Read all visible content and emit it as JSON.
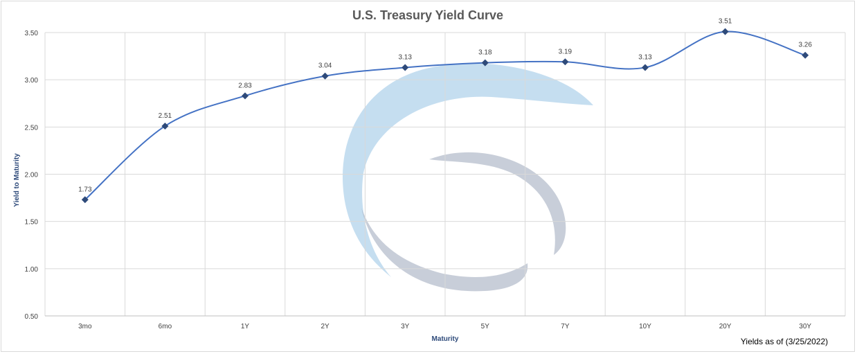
{
  "chart_data": {
    "type": "line",
    "title": "U.S. Treasury Yield Curve",
    "xlabel": "Maturity",
    "ylabel": "Yield to Maturity",
    "categories": [
      "3mo",
      "6mo",
      "1Y",
      "2Y",
      "3Y",
      "5Y",
      "7Y",
      "10Y",
      "20Y",
      "30Y"
    ],
    "series": [
      {
        "values": [
          1.73,
          2.51,
          2.83,
          3.04,
          3.13,
          3.18,
          3.19,
          3.13,
          3.51,
          3.26
        ]
      }
    ],
    "data_labels": [
      "1.73",
      "2.51",
      "2.83",
      "3.04",
      "3.13",
      "3.18",
      "3.19",
      "3.13",
      "3.51",
      "3.26"
    ],
    "ylim": [
      0.5,
      3.5
    ],
    "yticks": [
      "0.50",
      "1.00",
      "1.50",
      "2.00",
      "2.50",
      "3.00",
      "3.50"
    ],
    "ytick_values": [
      0.5,
      1.0,
      1.5,
      2.0,
      2.5,
      3.0,
      3.5
    ],
    "grid": true,
    "smooth": true,
    "marker": "diamond",
    "line_color": "#4472c4",
    "marker_color": "#2e4a7a",
    "footnote": "Yields as of (3/25/2022)"
  },
  "watermark": {
    "name": "logo-watermark",
    "colors": {
      "blue": "#9ec8e6",
      "gray": "#a3aebf"
    }
  },
  "colors": {
    "gridline": "#d9d9d9",
    "axis": "#bfbfbf"
  }
}
